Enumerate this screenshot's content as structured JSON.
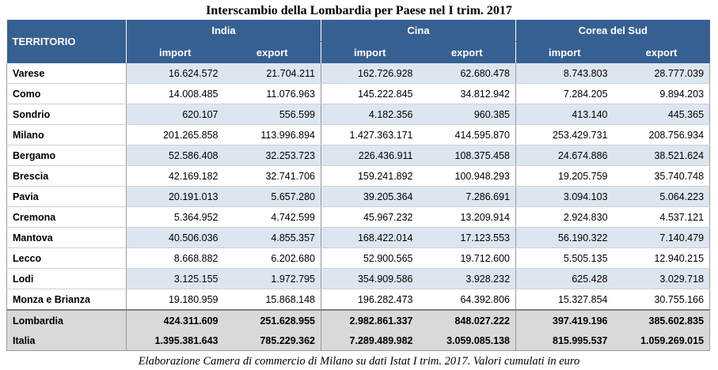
{
  "title": "Interscambio della Lombardia per Paese nel I trim. 2017",
  "header": {
    "territorio": "TERRITORIO",
    "countries": [
      "India",
      "Cina",
      "Corea del Sud"
    ],
    "import_label": "import",
    "export_label": "export"
  },
  "rows": [
    {
      "name": "Varese",
      "values": [
        "16.624.572",
        "21.704.211",
        "162.726.928",
        "62.680.478",
        "8.743.803",
        "28.777.039"
      ]
    },
    {
      "name": "Como",
      "values": [
        "14.008.485",
        "11.076.963",
        "145.222.845",
        "34.812.942",
        "7.284.205",
        "9.894.203"
      ]
    },
    {
      "name": "Sondrio",
      "values": [
        "620.107",
        "556.599",
        "4.182.356",
        "960.385",
        "413.140",
        "445.365"
      ]
    },
    {
      "name": "Milano",
      "values": [
        "201.265.858",
        "113.996.894",
        "1.427.363.171",
        "414.595.870",
        "253.429.731",
        "208.756.934"
      ]
    },
    {
      "name": "Bergamo",
      "values": [
        "52.586.408",
        "32.253.723",
        "226.436.911",
        "108.375.458",
        "24.674.886",
        "38.521.624"
      ]
    },
    {
      "name": "Brescia",
      "values": [
        "42.169.182",
        "32.741.706",
        "159.241.892",
        "100.948.293",
        "19.205.759",
        "35.740.748"
      ]
    },
    {
      "name": "Pavia",
      "values": [
        "20.191.013",
        "5.657.280",
        "39.205.364",
        "7.286.691",
        "3.094.103",
        "5.064.223"
      ]
    },
    {
      "name": "Cremona",
      "values": [
        "5.364.952",
        "4.742.599",
        "45.967.232",
        "13.209.914",
        "2.924.830",
        "4.537.121"
      ]
    },
    {
      "name": "Mantova",
      "values": [
        "40.506.036",
        "4.855.357",
        "168.422.014",
        "17.123.553",
        "56.190.322",
        "7.140.479"
      ]
    },
    {
      "name": "Lecco",
      "values": [
        "8.668.882",
        "6.202.680",
        "52.900.565",
        "19.712.600",
        "5.505.135",
        "12.940.215"
      ]
    },
    {
      "name": "Lodi",
      "values": [
        "3.125.155",
        "1.972.795",
        "354.909.586",
        "3.928.232",
        "625.428",
        "3.029.718"
      ]
    },
    {
      "name": "Monza e Brianza",
      "values": [
        "19.180.959",
        "15.868.148",
        "196.282.473",
        "64.392.806",
        "15.327.854",
        "30.755.166"
      ]
    }
  ],
  "totals": [
    {
      "name": "Lombardia",
      "values": [
        "424.311.609",
        "251.628.955",
        "2.982.861.337",
        "848.027.222",
        "397.419.196",
        "385.602.835"
      ]
    },
    {
      "name": "Italia",
      "values": [
        "1.395.381.643",
        "785.229.362",
        "7.289.489.982",
        "3.059.085.138",
        "815.995.537",
        "1.059.269.015"
      ]
    }
  ],
  "note": "Elaborazione Camera di commercio di Milano su dati Istat I trim. 2017. Valori cumulati in euro",
  "colors": {
    "header_bg": "#366092",
    "band": "#dce6f1",
    "totals_bg": "#d9d9d9"
  }
}
